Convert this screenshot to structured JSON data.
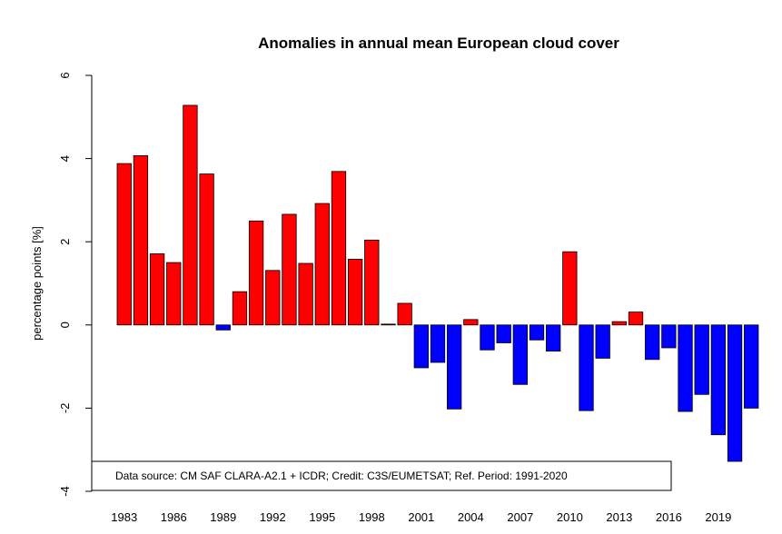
{
  "chart_data": {
    "type": "bar",
    "title": "Anomalies in annual mean European cloud cover",
    "ylabel": "percentage points [%]",
    "xlabel": "",
    "ylim": [
      -4,
      6
    ],
    "yticks": [
      -4,
      -2,
      0,
      2,
      4,
      6
    ],
    "xtick_labels": [
      "1983",
      "1986",
      "1989",
      "1992",
      "1995",
      "1998",
      "2001",
      "2004",
      "2007",
      "2010",
      "2013",
      "2016",
      "2019"
    ],
    "categories": [
      "1983",
      "1984",
      "1985",
      "1986",
      "1987",
      "1988",
      "1989",
      "1990",
      "1991",
      "1992",
      "1993",
      "1994",
      "1995",
      "1996",
      "1997",
      "1998",
      "1999",
      "2000",
      "2001",
      "2002",
      "2003",
      "2004",
      "2005",
      "2006",
      "2007",
      "2008",
      "2009",
      "2010",
      "2011",
      "2012",
      "2013",
      "2014",
      "2015",
      "2016",
      "2017",
      "2018",
      "2019",
      "2020",
      "2021"
    ],
    "values": [
      3.88,
      4.07,
      1.71,
      1.5,
      5.28,
      3.63,
      -0.12,
      0.8,
      2.5,
      1.31,
      2.66,
      1.48,
      2.92,
      3.69,
      1.58,
      2.04,
      0.02,
      0.52,
      -1.03,
      -0.9,
      -2.02,
      0.13,
      -0.6,
      -0.43,
      -1.43,
      -0.36,
      -0.63,
      1.76,
      -2.06,
      -0.8,
      0.08,
      0.31,
      -0.83,
      -0.55,
      -2.08,
      -1.67,
      -2.64,
      -3.28,
      -2.0
    ],
    "positive_color": "#ff0000",
    "negative_color": "#0000ff",
    "grid": false,
    "annotation": "Data source: CM SAF CLARA-A2.1 + ICDR;  Credit: C3S/EUMETSAT;  Ref. Period: 1991-2020",
    "annotation_placement": "bottom-left"
  }
}
